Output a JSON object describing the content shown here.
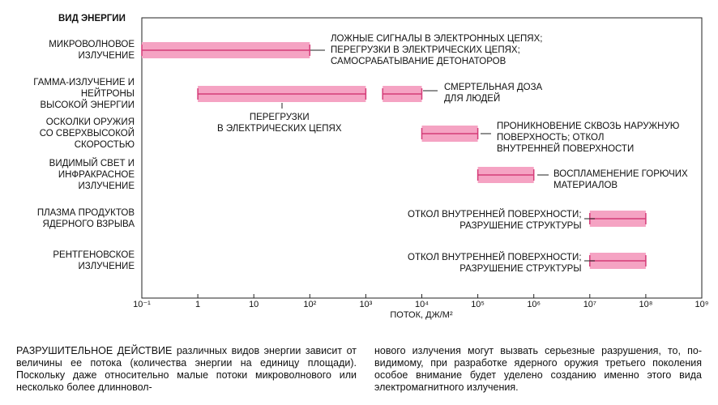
{
  "chart_data": {
    "type": "range-bar",
    "y_header": "ВИД ЭНЕРГИИ",
    "xlabel": "ПОТОК, ДЖ/М²",
    "log_x": true,
    "color": "#f5a3c3",
    "line_color": "#d43c78",
    "categories": [
      "МИКРОВОЛНОВОЕ\nИЗЛУЧЕНИЕ",
      "ГАММА-ИЗЛУЧЕНИЕ И\nНЕЙТРОНЫ\nВЫСОКОЙ ЭНЕРГИИ",
      "ОСКОЛКИ ОРУЖИЯ\nСО СВЕРХВЫСОКОЙ\nСКОРОСТЬЮ",
      "ВИДИМЫЙ СВЕТ И\nИНФРАКРАСНОЕ\nИЗЛУЧЕНИЕ",
      "ПЛАЗМА ПРОДУКТОВ\nЯДЕРНОГО ВЗРЫВА",
      "РЕНТГЕНОВСКОЕ\nИЗЛУЧЕНИЕ"
    ],
    "bars": [
      {
        "category": 0,
        "low": 0.1,
        "high": 100,
        "annotation": "ЛОЖНЫЕ СИГНАЛЫ В ЭЛЕКТРОННЫХ ЦЕПЯХ;\nПЕРЕГРУЗКИ В ЭЛЕКТРИЧЕСКИХ ЦЕПЯХ;\nСАМОСРАБАТЫВАНИЕ ДЕТОНАТОРОВ"
      },
      {
        "category": 1,
        "low": 1,
        "high": 1000,
        "annotation": "ПЕРЕГРУЗКИ\nВ ЭЛЕКТРИЧЕСКИХ ЦЕПЯХ"
      },
      {
        "category": 1,
        "low": 2000,
        "high": 10000,
        "annotation": "СМЕРТЕЛЬНАЯ ДОЗА\nДЛЯ ЛЮДЕЙ"
      },
      {
        "category": 2,
        "low": 10000,
        "high": 100000,
        "annotation": "ПРОНИКНОВЕНИЕ СКВОЗЬ НАРУЖНУЮ\nПОВЕРХНОСТЬ; ОТКОЛ\nВНУТРЕННЕЙ ПОВЕРХНОСТИ"
      },
      {
        "category": 3,
        "low": 100000,
        "high": 1000000,
        "annotation": "ВОСПЛАМЕНЕНИЕ ГОРЮЧИХ\nМАТЕРИАЛОВ"
      },
      {
        "category": 4,
        "low": 10000000,
        "high": 100000000,
        "annotation": "ОТКОЛ ВНУТРЕННЕЙ ПОВЕРХНОСТИ;\nРАЗРУШЕНИЕ СТРУКТУРЫ"
      },
      {
        "category": 5,
        "low": 10000000,
        "high": 100000000,
        "annotation": "ОТКОЛ ВНУТРЕННЕЙ ПОВЕРХНОСТИ;\nРАЗРУШЕНИЕ СТРУКТУРЫ"
      }
    ],
    "xlim": [
      0.1,
      1000000000
    ],
    "xticks": [
      {
        "value": 0.1,
        "label": "10⁻¹"
      },
      1,
      10,
      {
        "value": 100,
        "label": "10²"
      },
      {
        "value": 1000,
        "label": "10³"
      },
      {
        "value": 10000,
        "label": "10⁴"
      },
      {
        "value": 100000,
        "label": "10⁵"
      },
      {
        "value": 1000000,
        "label": "10⁶"
      },
      {
        "value": 10000000,
        "label": "10⁷"
      },
      {
        "value": 100000000,
        "label": "10⁸"
      },
      {
        "value": 1000000000,
        "label": "10⁹"
      }
    ]
  },
  "caption": {
    "lead": "РАЗРУШИТЕЛЬНОЕ ДЕЙСТВИЕ",
    "column1": " различных видов энергии зависит от величины ее потока (количества энергии на единицу площади). Поскольку даже относительно малые потоки микроволнового или несколько более длинновол-",
    "column2": "нового излучения могут вызвать серьезные разрушения, то, по-видимому, при разработке ядерного оружия третьего поколения особое внимание будет уделено созданию именно этого вида электромагнитного излучения."
  }
}
